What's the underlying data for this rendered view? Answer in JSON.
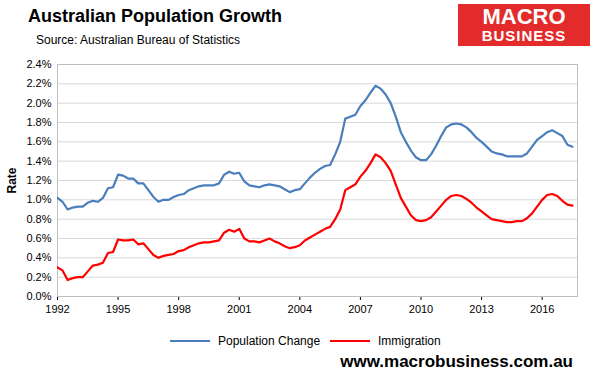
{
  "chart_data": {
    "type": "line",
    "title": "Australian Population Growth",
    "subtitle": "Source: Australian Bureau of Statistics",
    "logo_text": [
      "MACRO",
      "BUSINESS"
    ],
    "footer": "www.macrobusiness.com.au",
    "y_label": "Rate",
    "x": [
      1992,
      1992.25,
      1992.5,
      1992.75,
      1993,
      1993.25,
      1993.5,
      1993.75,
      1994,
      1994.25,
      1994.5,
      1994.75,
      1995,
      1995.25,
      1995.5,
      1995.75,
      1996,
      1996.25,
      1996.5,
      1996.75,
      1997,
      1997.25,
      1997.5,
      1997.75,
      1998,
      1998.25,
      1998.5,
      1998.75,
      1999,
      1999.25,
      1999.5,
      1999.75,
      2000,
      2000.25,
      2000.5,
      2000.75,
      2001,
      2001.25,
      2001.5,
      2001.75,
      2002,
      2002.25,
      2002.5,
      2002.75,
      2003,
      2003.25,
      2003.5,
      2003.75,
      2004,
      2004.25,
      2004.5,
      2004.75,
      2005,
      2005.25,
      2005.5,
      2005.75,
      2006,
      2006.25,
      2006.5,
      2006.75,
      2007,
      2007.25,
      2007.5,
      2007.75,
      2008,
      2008.25,
      2008.5,
      2008.75,
      2009,
      2009.25,
      2009.5,
      2009.75,
      2010,
      2010.25,
      2010.5,
      2010.75,
      2011,
      2011.25,
      2011.5,
      2011.75,
      2012,
      2012.25,
      2012.5,
      2012.75,
      2013,
      2013.25,
      2013.5,
      2013.75,
      2014,
      2014.25,
      2014.5,
      2014.75,
      2015,
      2015.25,
      2015.5,
      2015.75,
      2016,
      2016.25,
      2016.5,
      2016.75,
      2017,
      2017.25,
      2017.5
    ],
    "series": [
      {
        "name": "Population Change",
        "color": "#4a7ebb",
        "values": [
          1.02,
          0.98,
          0.9,
          0.92,
          0.93,
          0.93,
          0.97,
          0.99,
          0.98,
          1.02,
          1.12,
          1.13,
          1.26,
          1.25,
          1.22,
          1.22,
          1.17,
          1.17,
          1.1,
          1.03,
          0.98,
          1.0,
          1.0,
          1.03,
          1.05,
          1.06,
          1.1,
          1.12,
          1.14,
          1.15,
          1.15,
          1.15,
          1.17,
          1.26,
          1.29,
          1.27,
          1.28,
          1.19,
          1.15,
          1.14,
          1.13,
          1.15,
          1.16,
          1.15,
          1.14,
          1.11,
          1.08,
          1.1,
          1.11,
          1.17,
          1.23,
          1.28,
          1.32,
          1.35,
          1.36,
          1.47,
          1.6,
          1.84,
          1.86,
          1.88,
          1.97,
          2.03,
          2.11,
          2.18,
          2.15,
          2.09,
          2.0,
          1.86,
          1.7,
          1.6,
          1.51,
          1.44,
          1.41,
          1.41,
          1.47,
          1.56,
          1.66,
          1.75,
          1.78,
          1.79,
          1.78,
          1.75,
          1.7,
          1.64,
          1.6,
          1.55,
          1.5,
          1.48,
          1.47,
          1.45,
          1.45,
          1.45,
          1.45,
          1.48,
          1.55,
          1.62,
          1.66,
          1.7,
          1.72,
          1.69,
          1.66,
          1.57,
          1.55
        ]
      },
      {
        "name": "Immigration",
        "color": "#ff0000",
        "values": [
          0.3,
          0.27,
          0.17,
          0.19,
          0.2,
          0.2,
          0.26,
          0.32,
          0.33,
          0.35,
          0.45,
          0.46,
          0.59,
          0.58,
          0.58,
          0.59,
          0.54,
          0.55,
          0.49,
          0.43,
          0.4,
          0.42,
          0.43,
          0.44,
          0.47,
          0.48,
          0.51,
          0.53,
          0.55,
          0.56,
          0.56,
          0.57,
          0.58,
          0.66,
          0.69,
          0.67,
          0.7,
          0.6,
          0.57,
          0.57,
          0.56,
          0.58,
          0.6,
          0.57,
          0.55,
          0.52,
          0.5,
          0.51,
          0.53,
          0.58,
          0.61,
          0.64,
          0.67,
          0.7,
          0.72,
          0.8,
          0.9,
          1.1,
          1.13,
          1.16,
          1.24,
          1.3,
          1.38,
          1.47,
          1.44,
          1.38,
          1.3,
          1.16,
          1.02,
          0.93,
          0.84,
          0.79,
          0.78,
          0.79,
          0.82,
          0.88,
          0.94,
          1.0,
          1.04,
          1.05,
          1.04,
          1.01,
          0.97,
          0.92,
          0.88,
          0.84,
          0.8,
          0.79,
          0.78,
          0.77,
          0.77,
          0.78,
          0.78,
          0.81,
          0.86,
          0.93,
          1.0,
          1.05,
          1.06,
          1.04,
          0.99,
          0.95,
          0.94
        ]
      }
    ],
    "xlim": [
      1992,
      2017.75
    ],
    "xticks": [
      1992,
      1995,
      1998,
      2001,
      2004,
      2007,
      2010,
      2013,
      2016
    ],
    "ylim": [
      0,
      2.4
    ],
    "yticks": [
      {
        "value": 0,
        "label": "0.0%"
      },
      {
        "value": 0.2,
        "label": "0.2%"
      },
      {
        "value": 0.4,
        "label": "0.4%"
      },
      {
        "value": 0.6,
        "label": "0.6%"
      },
      {
        "value": 0.8,
        "label": "0.8%"
      },
      {
        "value": 1.0,
        "label": "1.0%"
      },
      {
        "value": 1.2,
        "label": "1.2%"
      },
      {
        "value": 1.4,
        "label": "1.4%"
      },
      {
        "value": 1.6,
        "label": "1.6%"
      },
      {
        "value": 1.8,
        "label": "1.8%"
      },
      {
        "value": 2.0,
        "label": "2.0%"
      },
      {
        "value": 2.2,
        "label": "2.2%"
      },
      {
        "value": 2.4,
        "label": "2.4%"
      }
    ],
    "grid": true,
    "legend": "bottom"
  }
}
